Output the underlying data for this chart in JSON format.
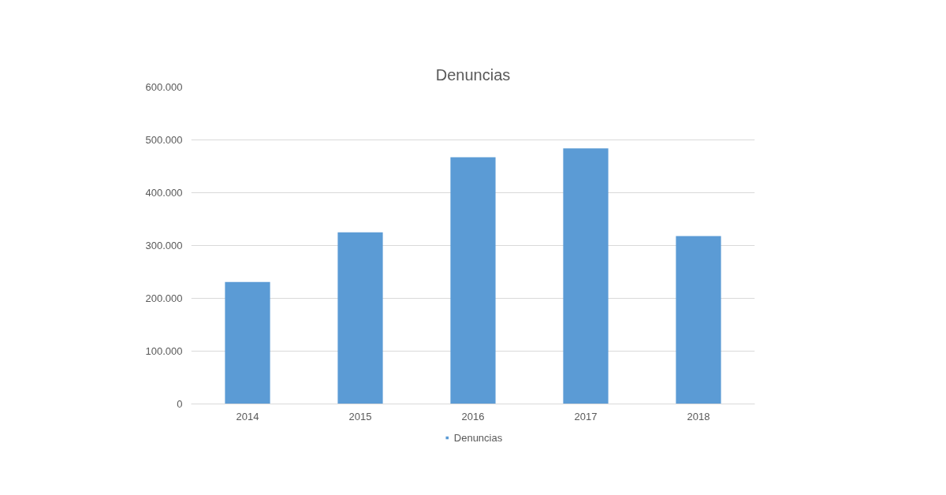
{
  "chart_data": {
    "type": "bar",
    "title": "Denuncias",
    "categories": [
      "2014",
      "2015",
      "2016",
      "2017",
      "2018"
    ],
    "series": [
      {
        "name": "Denuncias",
        "color": "#5b9bd5",
        "values": [
          231000,
          325000,
          467000,
          484000,
          318000
        ]
      }
    ],
    "ylim": [
      0,
      600000
    ],
    "yticks": [
      0,
      {
        "value": 100000,
        "label": "100.000"
      },
      {
        "value": 200000,
        "label": "200.000"
      },
      {
        "value": 300000,
        "label": "300.000"
      },
      {
        "value": 400000,
        "label": "400.000"
      },
      {
        "value": 500000,
        "label": "500.000"
      },
      {
        "value": 600000,
        "label": "600.000"
      }
    ],
    "grid": "y",
    "legend": "bottom"
  }
}
